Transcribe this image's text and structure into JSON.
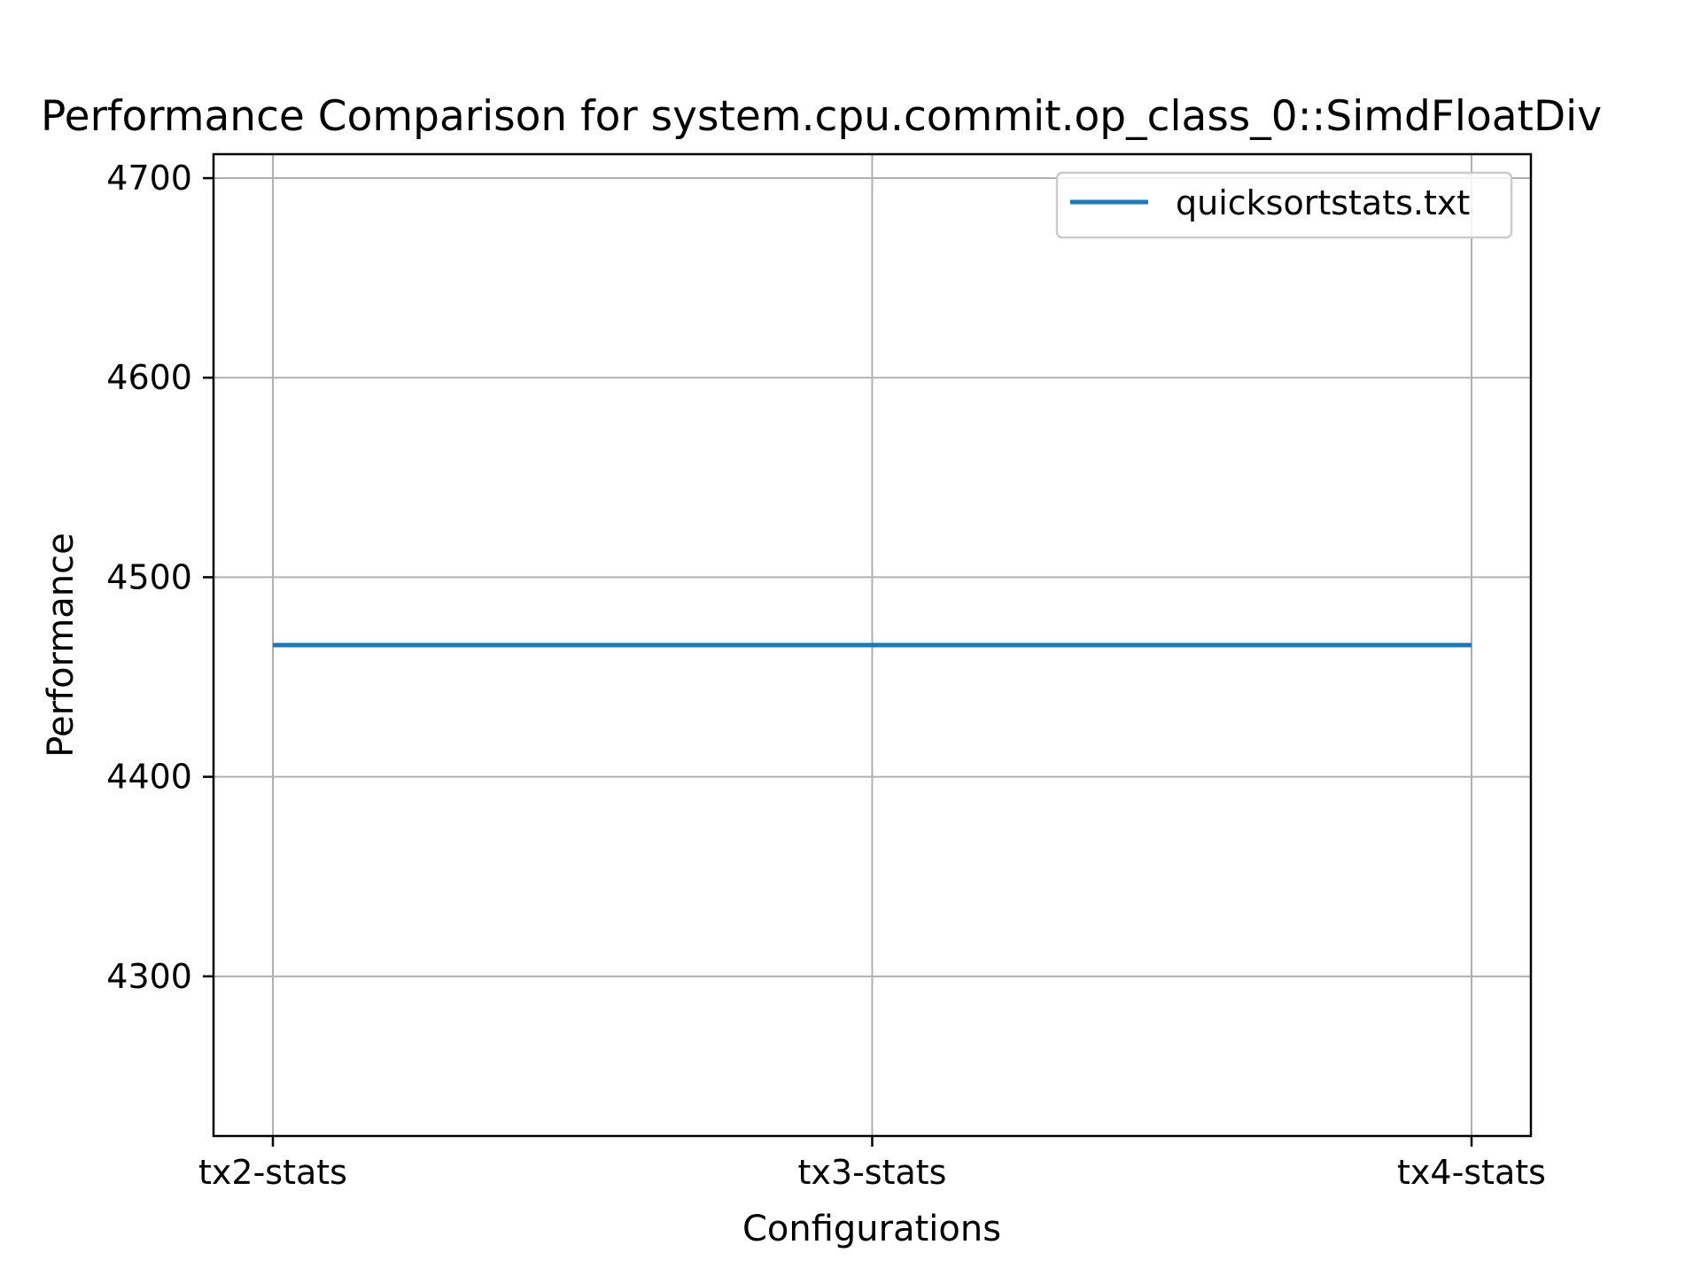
{
  "chart_data": {
    "type": "line",
    "title": "Performance Comparison for system.cpu.commit.op_class_0::SimdFloatDiv",
    "xlabel": "Configurations",
    "ylabel": "Performance",
    "categories": [
      "tx2-stats",
      "tx3-stats",
      "tx4-stats"
    ],
    "series": [
      {
        "name": "quicksortstats.txt",
        "values": [
          4466,
          4466,
          4466
        ],
        "color": "#1f77b4"
      }
    ],
    "ylim": [
      4220,
      4712
    ],
    "yticks": [
      4300,
      4400,
      4500,
      4600,
      4700
    ],
    "grid": true,
    "legend_position": "upper-right"
  }
}
